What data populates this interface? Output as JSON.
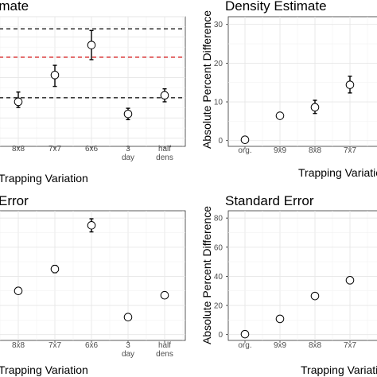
{
  "chart_data": [
    {
      "type": "scatter",
      "title": "Estimate",
      "xlabel": "Trapping Variation",
      "ylabel": "",
      "categories": [
        "8x8",
        "7x7",
        "6x6",
        "3 day",
        "half dens"
      ],
      "values": [
        -0.5,
        2.8,
        6.5,
        -2.0,
        0.3
      ],
      "error_low": [
        -1.2,
        1.4,
        4.7,
        -2.7,
        -0.5
      ],
      "error_high": [
        0.7,
        4.0,
        8.3,
        -1.3,
        1.1
      ],
      "reference_lines": [
        {
          "value": 8.5,
          "color": "#000000"
        },
        {
          "value": 5.0,
          "color": "#d62728"
        },
        {
          "value": 0.0,
          "color": "#000000"
        }
      ],
      "ylim": [
        -6,
        10
      ],
      "grid": true
    },
    {
      "type": "scatter",
      "title": "Density Estimate",
      "xlabel": "Trapping Variation",
      "ylabel": "Absolute Percent Difference",
      "categories": [
        "org.",
        "9x9",
        "8x8",
        "7x7"
      ],
      "values": [
        0.2,
        6.4,
        8.6,
        14.4
      ],
      "error_low": [
        0.2,
        5.8,
        7.0,
        12.3
      ],
      "error_high": [
        0.2,
        7.0,
        10.4,
        16.6
      ],
      "yticks": [
        "0",
        "10",
        "20",
        "30"
      ],
      "ylim": [
        -1.5,
        32
      ],
      "grid": true
    },
    {
      "type": "scatter",
      "title": "Error",
      "xlabel": "Trapping Variation",
      "ylabel": "",
      "categories": [
        "8x8",
        "7x7",
        "6x6",
        "3 day",
        "half dens"
      ],
      "values": [
        30,
        45,
        75,
        12,
        27
      ],
      "error_low": [
        30,
        42.5,
        70.5,
        12,
        27
      ],
      "error_high": [
        30,
        47.5,
        79.5,
        12,
        27
      ],
      "ylim": [
        -4,
        85
      ],
      "grid": true
    },
    {
      "type": "scatter",
      "title": "Standard Error",
      "xlabel": "Trapping Variation",
      "ylabel": "Absolute Percent Difference",
      "categories": [
        "org.",
        "9x9",
        "8x8",
        "7x7"
      ],
      "values": [
        0.3,
        10.8,
        26.5,
        37.3
      ],
      "error_low": [
        0.3,
        10.8,
        26.5,
        35.3
      ],
      "error_high": [
        0.3,
        10.8,
        26.5,
        39.3
      ],
      "yticks": [
        "0",
        "20",
        "40",
        "60",
        "80"
      ],
      "ylim": [
        -4,
        85
      ],
      "grid": true
    }
  ]
}
